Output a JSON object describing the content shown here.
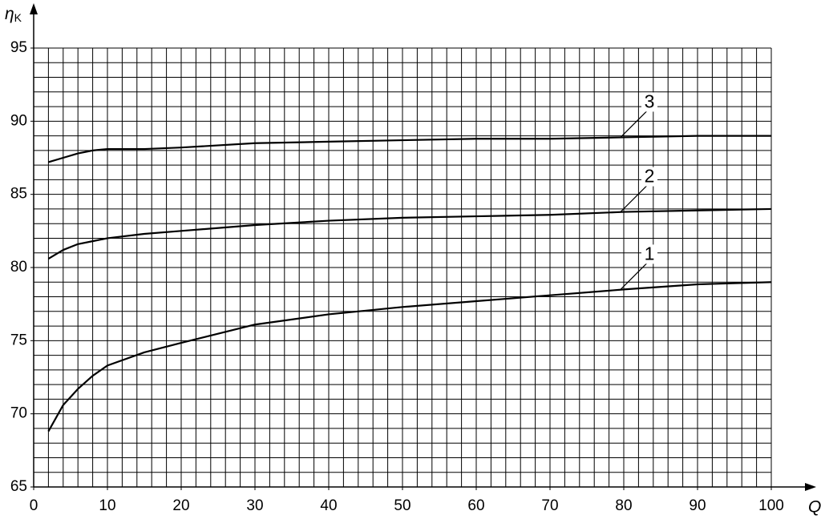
{
  "chart_data": {
    "type": "line",
    "x_label": "Q",
    "y_label": {
      "symbol": "η",
      "subscript": "K"
    },
    "x": [
      2,
      4,
      6,
      8,
      10,
      15,
      20,
      30,
      40,
      50,
      60,
      70,
      80,
      90,
      100
    ],
    "series": [
      {
        "name": "1",
        "color": "#000000",
        "values": [
          68.8,
          70.6,
          71.7,
          72.6,
          73.3,
          74.2,
          74.85,
          76.1,
          76.8,
          77.3,
          77.7,
          78.1,
          78.5,
          78.85,
          79.0
        ]
      },
      {
        "name": "2",
        "color": "#000000",
        "values": [
          80.6,
          81.2,
          81.6,
          81.8,
          82.0,
          82.3,
          82.5,
          82.9,
          83.2,
          83.4,
          83.5,
          83.6,
          83.8,
          83.9,
          84.0
        ]
      },
      {
        "name": "3",
        "color": "#000000",
        "values": [
          87.2,
          87.5,
          87.8,
          88.0,
          88.1,
          88.1,
          88.2,
          88.5,
          88.6,
          88.7,
          88.8,
          88.8,
          88.9,
          89.0,
          89.0
        ]
      }
    ],
    "xlim": [
      0,
      100
    ],
    "ylim": [
      65,
      95
    ],
    "xticks": [
      0,
      10,
      20,
      30,
      40,
      50,
      60,
      70,
      80,
      90,
      100
    ],
    "yticks": [
      65,
      70,
      75,
      80,
      85,
      90,
      95
    ],
    "xgrid": [
      2,
      4,
      6,
      8,
      10,
      12,
      14,
      16,
      18,
      20,
      22,
      24,
      26,
      28,
      30,
      32,
      34,
      36,
      38,
      40,
      42,
      44,
      46,
      48,
      50,
      52,
      54,
      56,
      58,
      60,
      62,
      64,
      66,
      68,
      70,
      72,
      74,
      76,
      78,
      80,
      82,
      84,
      86,
      88,
      90,
      92,
      94,
      96,
      98,
      100
    ],
    "ygrid": [
      65,
      66,
      67,
      68,
      69,
      70,
      71,
      72,
      73,
      74,
      75,
      76,
      77,
      78,
      79,
      80,
      81,
      82,
      83,
      84,
      85,
      86,
      87,
      88,
      89,
      90,
      91,
      92,
      93,
      94,
      95
    ],
    "grid": true
  }
}
